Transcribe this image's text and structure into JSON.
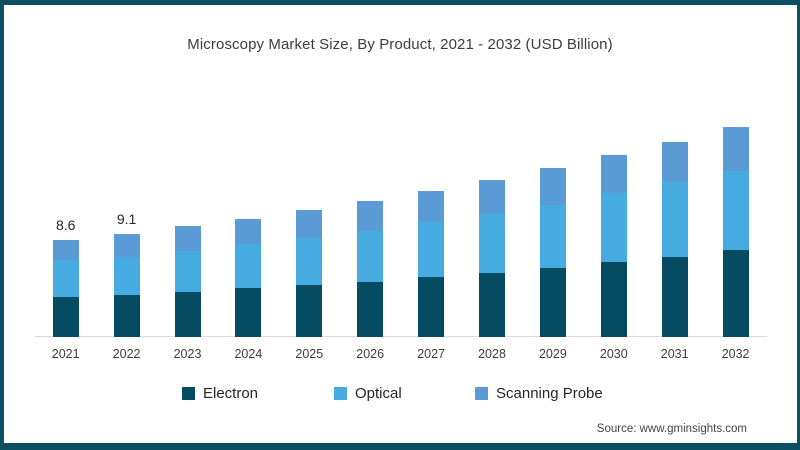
{
  "title": "Microscopy Market Size, By Product, 2021 - 2032 (USD Billion)",
  "source_note": "Source: www.gminsights.com",
  "colors": {
    "frame_border": "#0d4f63",
    "electron": "#054b61",
    "optical": "#45abe0",
    "scanning_probe": "#5b9bd5",
    "axis_line": "#d9d9d9",
    "text": "#3d3d3d"
  },
  "legend": [
    {
      "label": "Electron",
      "color": "#054b61"
    },
    {
      "label": "Optical",
      "color": "#45abe0"
    },
    {
      "label": "Scanning Probe",
      "color": "#5b9bd5"
    }
  ],
  "chart_data": {
    "type": "bar",
    "stacked": true,
    "title": "Microscopy Market Size, By Product, 2021 - 2032 (USD Billion)",
    "units": "USD Billion",
    "categories": [
      "2021",
      "2022",
      "2023",
      "2024",
      "2025",
      "2026",
      "2027",
      "2028",
      "2029",
      "2030",
      "2031",
      "2032"
    ],
    "series": [
      {
        "name": "Electron",
        "color": "#054b61",
        "values": [
          3.5,
          3.7,
          4.0,
          4.3,
          4.6,
          4.9,
          5.3,
          5.7,
          6.1,
          6.6,
          7.1,
          7.7
        ]
      },
      {
        "name": "Optical",
        "color": "#45abe0",
        "values": [
          3.3,
          3.4,
          3.6,
          3.9,
          4.2,
          4.5,
          4.9,
          5.2,
          5.6,
          6.1,
          6.6,
          7.0
        ]
      },
      {
        "name": "Scanning Probe",
        "color": "#5b9bd5",
        "values": [
          1.8,
          2.0,
          2.2,
          2.2,
          2.4,
          2.6,
          2.7,
          3.0,
          3.3,
          3.4,
          3.6,
          3.9
        ]
      }
    ],
    "totals": [
      8.6,
      9.1,
      9.8,
      10.4,
      11.2,
      12.0,
      12.9,
      13.9,
      15.0,
      16.1,
      17.3,
      18.6
    ],
    "value_labels": {
      "2021": "8.6",
      "2022": "9.1"
    },
    "xlabel": "",
    "ylabel": "",
    "ylim": [
      0,
      20
    ],
    "gridlines": false,
    "y_axis_visible": false,
    "legend_position": "bottom"
  }
}
